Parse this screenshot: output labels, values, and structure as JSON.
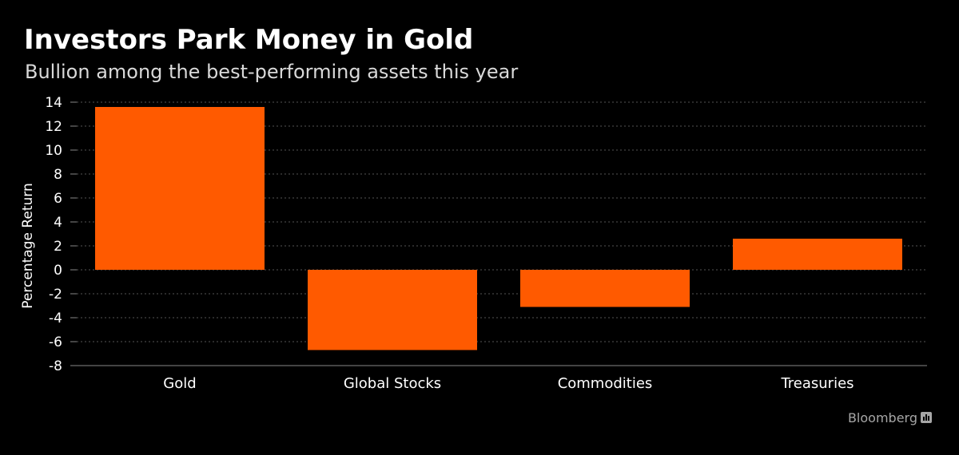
{
  "header": {
    "title": "Investors Park Money in Gold",
    "subtitle": "Bullion among the best-performing assets this year"
  },
  "footer": {
    "source": "Bloomberg",
    "source_icon": "bloomberg-chart-icon"
  },
  "colors": {
    "background": "#000000",
    "bar": "#ff5a00",
    "grid": "#555555",
    "text": "#ffffff"
  },
  "chart_data": {
    "type": "bar",
    "categories": [
      "Gold",
      "Global Stocks",
      "Commodities",
      "Treasuries"
    ],
    "values": [
      13.6,
      -6.7,
      -3.1,
      2.6
    ],
    "title": "Investors Park Money in Gold",
    "subtitle": "Bullion among the best-performing assets this year",
    "xlabel": "",
    "ylabel": "Percentage Return",
    "ylim": [
      -8,
      14
    ],
    "yticks": [
      14,
      12,
      10,
      8,
      6,
      4,
      2,
      0,
      -2,
      -4,
      -6,
      -8
    ],
    "grid": true,
    "legend": "none"
  }
}
